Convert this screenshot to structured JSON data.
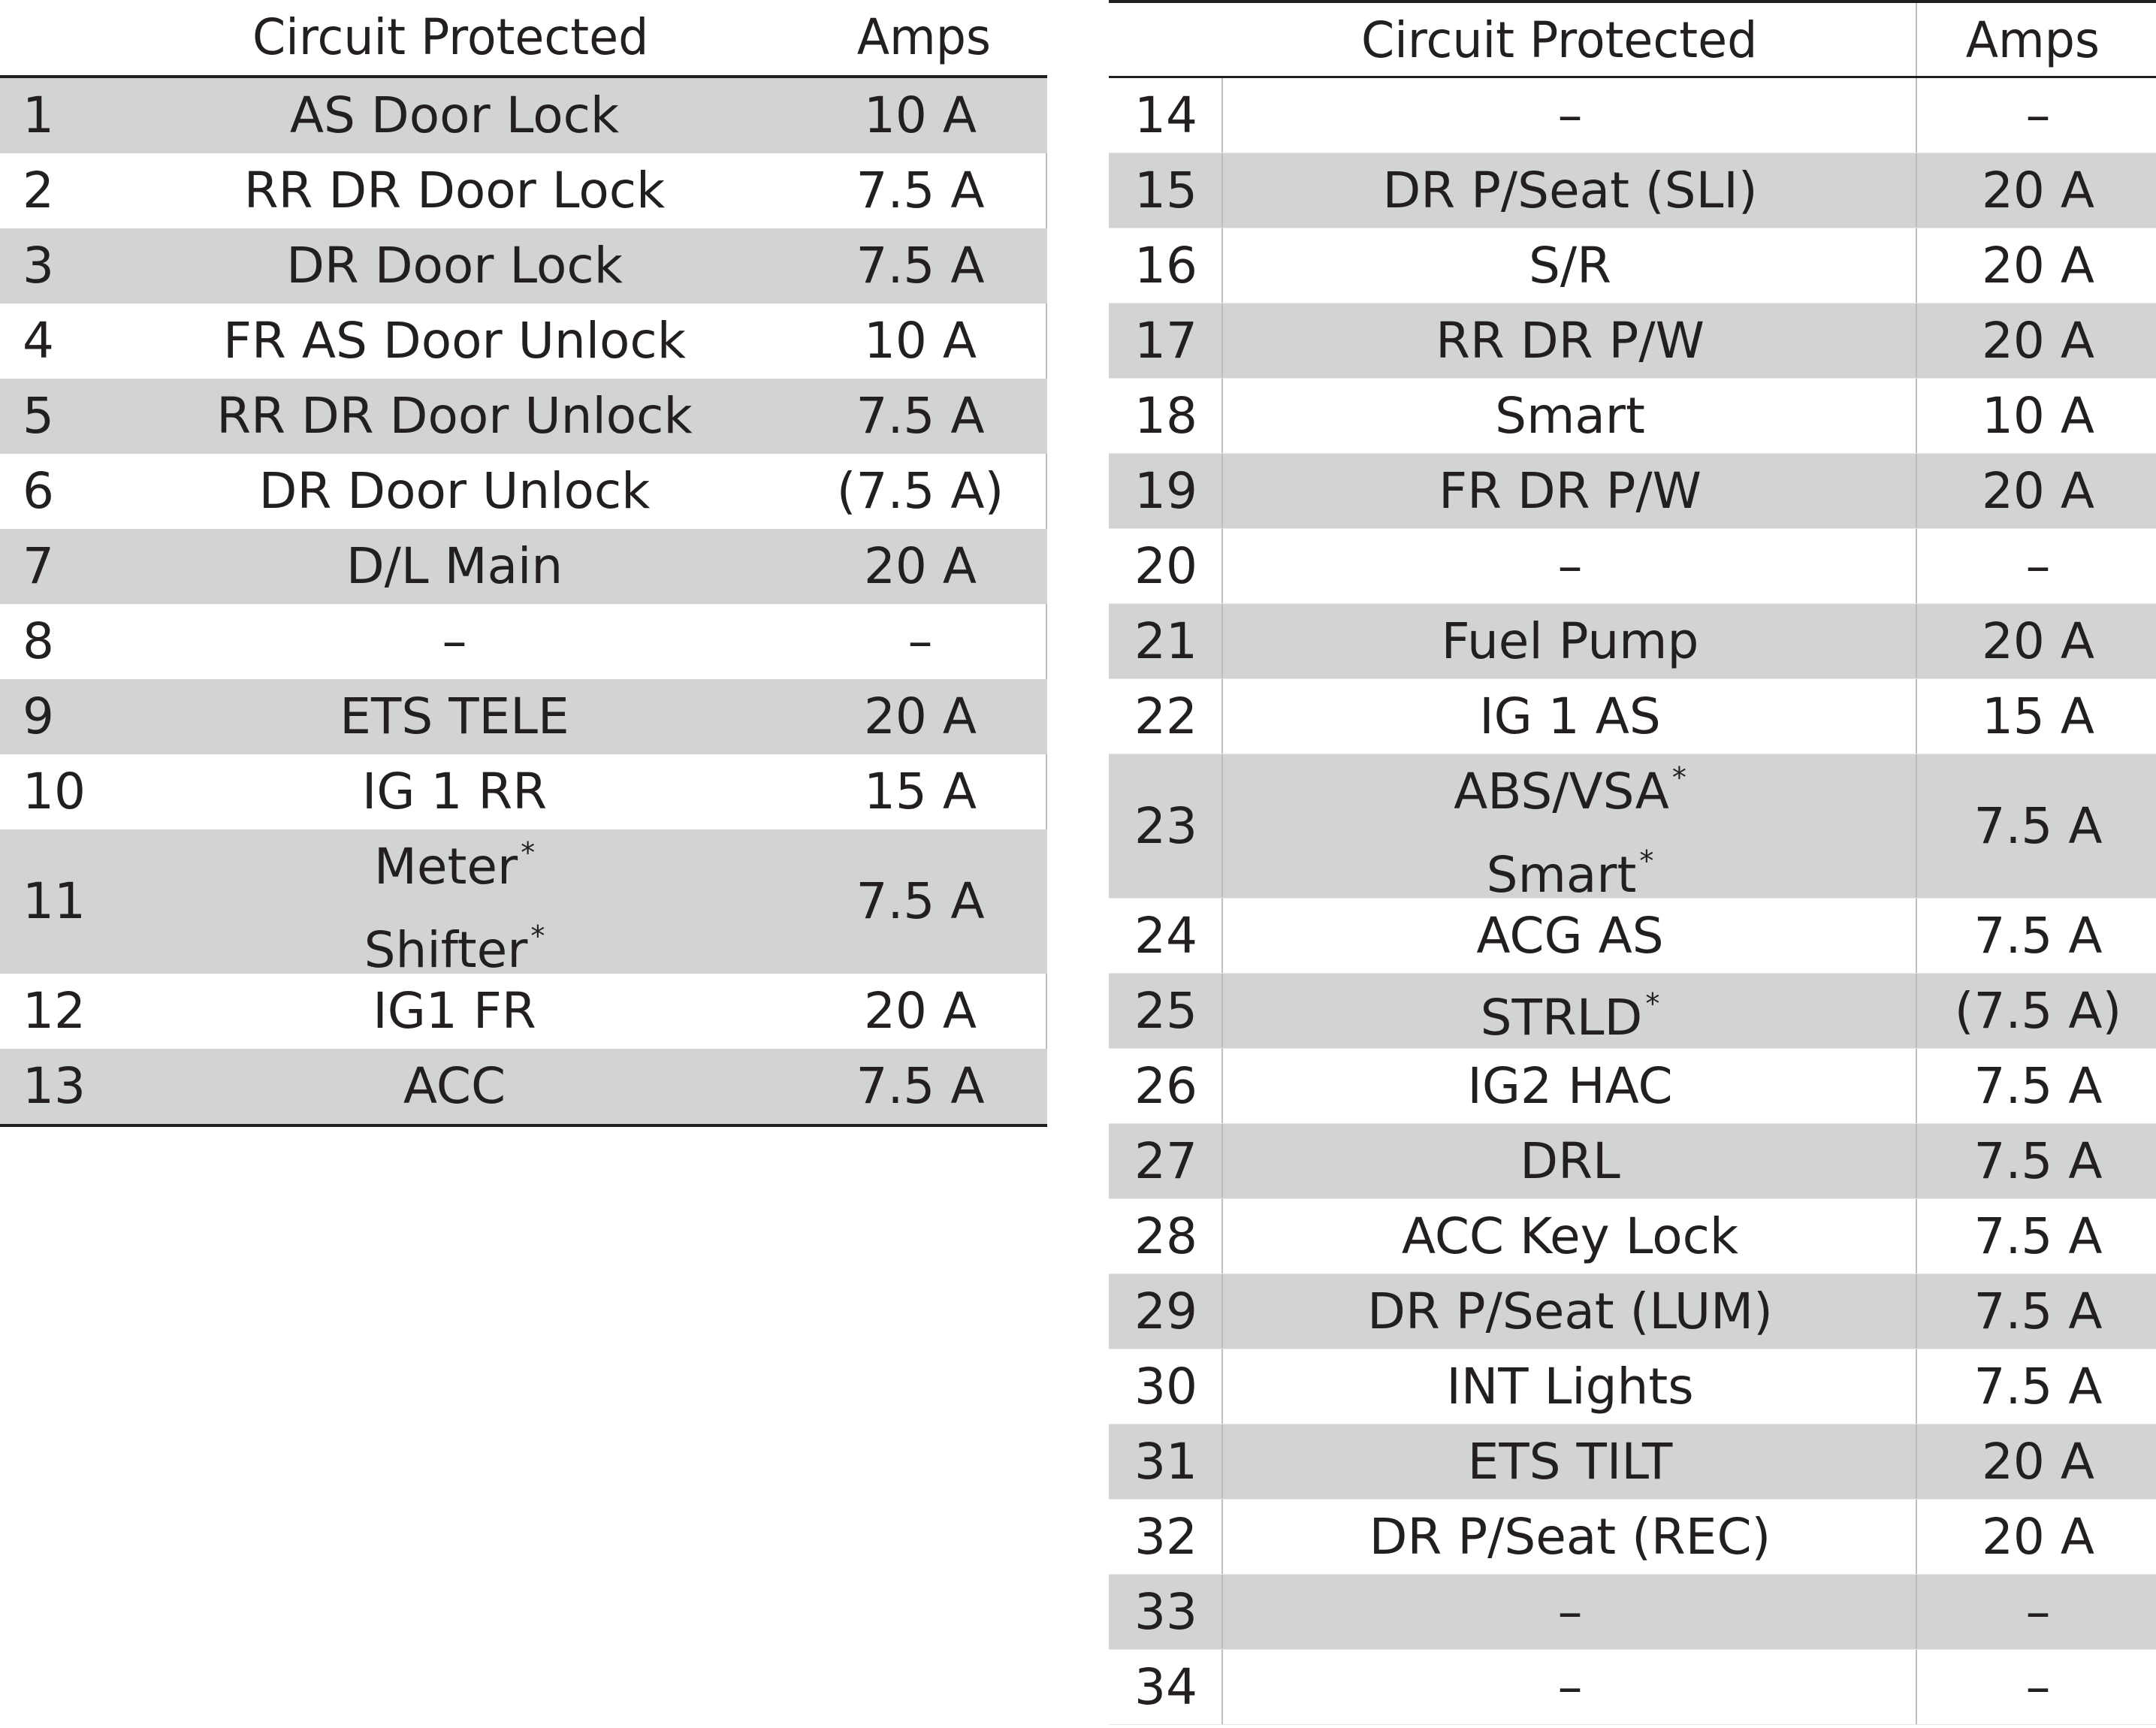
{
  "headers": {
    "circuit": "Circuit Protected",
    "amps": "Amps"
  },
  "left_rows": [
    {
      "no": "1",
      "lines": [
        "AS Door Lock"
      ],
      "amps": "10 A"
    },
    {
      "no": "2",
      "lines": [
        "RR DR Door Lock"
      ],
      "amps": "7.5 A"
    },
    {
      "no": "3",
      "lines": [
        "DR Door Lock"
      ],
      "amps": "7.5 A"
    },
    {
      "no": "4",
      "lines": [
        "FR AS Door Unlock"
      ],
      "amps": "10 A"
    },
    {
      "no": "5",
      "lines": [
        "RR DR Door Unlock"
      ],
      "amps": "7.5 A"
    },
    {
      "no": "6",
      "lines": [
        "DR Door Unlock"
      ],
      "amps": "(7.5 A)"
    },
    {
      "no": "7",
      "lines": [
        "D/L Main"
      ],
      "amps": "20 A"
    },
    {
      "no": "8",
      "lines": [
        "–"
      ],
      "amps": "–"
    },
    {
      "no": "9",
      "lines": [
        "ETS TELE"
      ],
      "amps": "20 A"
    },
    {
      "no": "10",
      "lines": [
        "IG 1 RR"
      ],
      "amps": "15 A"
    },
    {
      "no": "11",
      "lines": [
        "Meter",
        "Shifter"
      ],
      "star": [
        true,
        true
      ],
      "amps": "7.5 A"
    },
    {
      "no": "12",
      "lines": [
        "IG1 FR"
      ],
      "amps": "20 A"
    },
    {
      "no": "13",
      "lines": [
        "ACC"
      ],
      "amps": "7.5 A"
    }
  ],
  "right_rows": [
    {
      "no": "14",
      "lines": [
        "–"
      ],
      "amps": "–"
    },
    {
      "no": "15",
      "lines": [
        "DR P/Seat (SLI)"
      ],
      "amps": "20 A"
    },
    {
      "no": "16",
      "lines": [
        "S/R"
      ],
      "amps": "20 A"
    },
    {
      "no": "17",
      "lines": [
        "RR DR P/W"
      ],
      "amps": "20 A"
    },
    {
      "no": "18",
      "lines": [
        "Smart"
      ],
      "amps": "10 A"
    },
    {
      "no": "19",
      "lines": [
        "FR DR P/W"
      ],
      "amps": "20 A"
    },
    {
      "no": "20",
      "lines": [
        "–"
      ],
      "amps": "–"
    },
    {
      "no": "21",
      "lines": [
        "Fuel Pump"
      ],
      "amps": "20 A"
    },
    {
      "no": "22",
      "lines": [
        "IG 1 AS"
      ],
      "amps": "15 A"
    },
    {
      "no": "23",
      "lines": [
        "ABS/VSA",
        "Smart"
      ],
      "star": [
        true,
        true
      ],
      "amps": "7.5 A"
    },
    {
      "no": "24",
      "lines": [
        "ACG AS"
      ],
      "amps": "7.5 A"
    },
    {
      "no": "25",
      "lines": [
        "STRLD"
      ],
      "star": [
        true
      ],
      "amps": "(7.5 A)"
    },
    {
      "no": "26",
      "lines": [
        "IG2 HAC"
      ],
      "amps": "7.5 A"
    },
    {
      "no": "27",
      "lines": [
        "DRL"
      ],
      "amps": "7.5 A"
    },
    {
      "no": "28",
      "lines": [
        "ACC Key Lock"
      ],
      "amps": "7.5 A"
    },
    {
      "no": "29",
      "lines": [
        "DR P/Seat (LUM)"
      ],
      "amps": "7.5 A"
    },
    {
      "no": "30",
      "lines": [
        "INT Lights"
      ],
      "amps": "7.5 A"
    },
    {
      "no": "31",
      "lines": [
        "ETS TILT"
      ],
      "amps": "20 A"
    },
    {
      "no": "32",
      "lines": [
        "DR P/Seat (REC)"
      ],
      "amps": "20 A"
    },
    {
      "no": "33",
      "lines": [
        "–"
      ],
      "amps": "–"
    },
    {
      "no": "34",
      "lines": [
        "–"
      ],
      "amps": "–"
    }
  ],
  "asterisk": "*"
}
